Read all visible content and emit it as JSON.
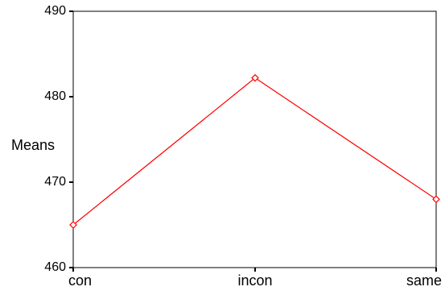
{
  "chart_data": {
    "type": "line",
    "categories": [
      "con",
      "incon",
      "same"
    ],
    "series": [
      {
        "values": [
          465,
          482.2,
          468
        ]
      }
    ],
    "ylabel": "Means",
    "xlabel": "",
    "title": "",
    "ylim": [
      460,
      490
    ],
    "yticks": [
      "460",
      "470",
      "480",
      "490"
    ],
    "grid": false,
    "legend": "none",
    "line_color": "#ff0000",
    "marker": "diamond-open"
  }
}
